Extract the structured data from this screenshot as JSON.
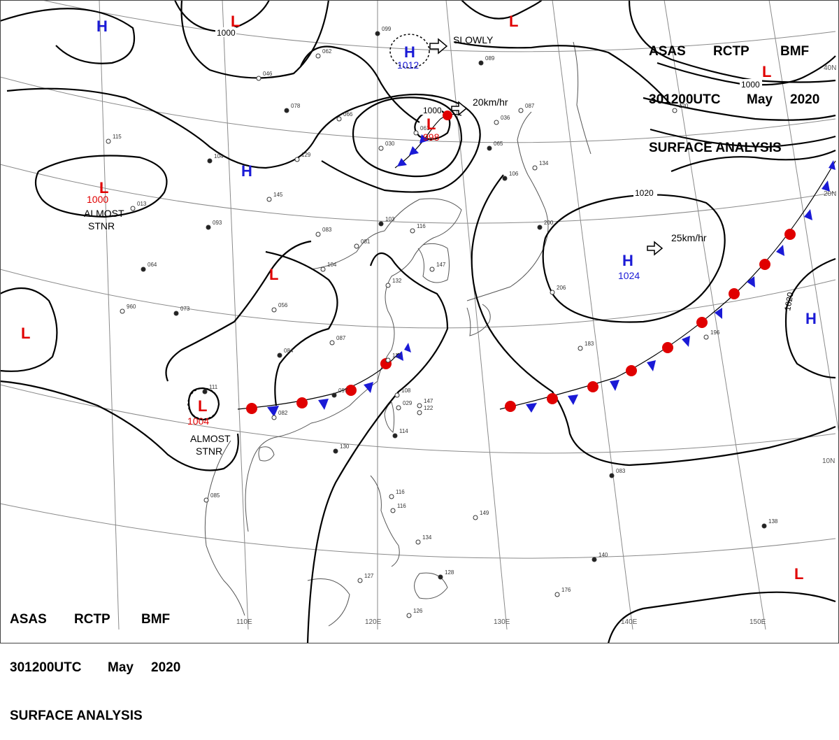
{
  "header": {
    "agency": "ASAS",
    "station": "RCTP",
    "office": "BMF",
    "time": "301200UTC",
    "month": "May",
    "year": "2020",
    "title": "SURFACE ANALYSIS"
  },
  "colors": {
    "high": "#1a1ad6",
    "low": "#e00000",
    "cold_front": "#1a1ad6",
    "warm_front": "#e00000",
    "isobar": "#000000",
    "grid": "#8a8a8a",
    "coast": "#555555"
  },
  "isobar_labels": {
    "a": "1000",
    "b": "1000",
    "c": "1000",
    "d": "1020",
    "e": "1020"
  },
  "pressure_systems": [
    {
      "type": "H",
      "value": ""
    },
    {
      "type": "L",
      "value": ""
    },
    {
      "type": "H",
      "value": "1012"
    },
    {
      "type": "L",
      "value": ""
    },
    {
      "type": "L",
      "value": ""
    },
    {
      "type": "L",
      "value": "998"
    },
    {
      "type": "H",
      "value": ""
    },
    {
      "type": "L",
      "value": "1000"
    },
    {
      "type": "L",
      "value": ""
    },
    {
      "type": "L",
      "value": ""
    },
    {
      "type": "L",
      "value": "1004"
    },
    {
      "type": "H",
      "value": "1024"
    },
    {
      "type": "H",
      "value": ""
    },
    {
      "type": "L",
      "value": ""
    }
  ],
  "annotations": {
    "slowly": "SLOWLY",
    "speed_low": "20km/hr",
    "speed_high": "25km/hr",
    "stnr1": "ALMOST",
    "stnr2": "STNR",
    "stnr3": "ALMOST",
    "stnr4": "STNR"
  },
  "grid_labels": {
    "lon_110": "110E",
    "lon_120": "120E",
    "lon_130": "130E",
    "lon_140": "140E",
    "lon_150": "150E",
    "lat_40": "40N",
    "lat_20": "20N",
    "lat_10": "10N"
  },
  "station_obs": [
    "099",
    "062",
    "046",
    "078",
    "066",
    "030",
    "089",
    "087",
    "036",
    "065",
    "120",
    "115",
    "104",
    "129",
    "145",
    "106",
    "134",
    "013",
    "093",
    "083",
    "081",
    "103",
    "116",
    "104",
    "064",
    "147",
    "132",
    "200",
    "206",
    "960",
    "073",
    "056",
    "087",
    "084",
    "112",
    "147",
    "097",
    "108",
    "122",
    "114",
    "029",
    "085",
    "130",
    "116",
    "116",
    "138",
    "149",
    "134",
    "128",
    "126",
    "127",
    "083",
    "196",
    "183",
    "140",
    "176",
    "061",
    "111",
    "082"
  ]
}
